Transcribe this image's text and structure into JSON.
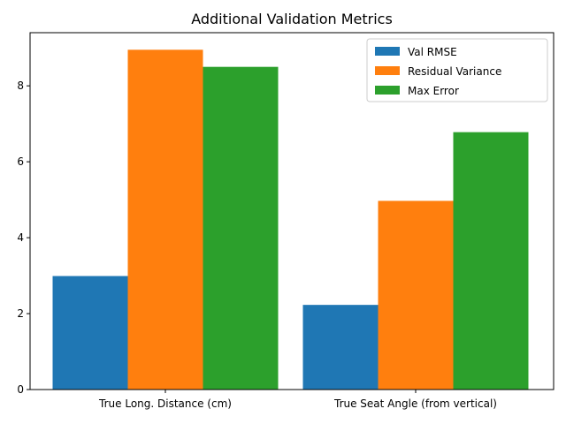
{
  "chart_data": {
    "type": "bar",
    "title": "Additional Validation Metrics",
    "xlabel": "",
    "ylabel": "",
    "categories": [
      "True Long. Distance (cm)",
      "True Seat Angle (from vertical)"
    ],
    "series": [
      {
        "name": "Val RMSE",
        "color": "#1f77b4",
        "values": [
          2.99,
          2.23
        ]
      },
      {
        "name": "Residual Variance",
        "color": "#ff7f0e",
        "values": [
          8.95,
          4.97
        ]
      },
      {
        "name": "Max Error",
        "color": "#2ca02c",
        "values": [
          8.5,
          6.78
        ]
      }
    ],
    "ylim": [
      0,
      9.4
    ],
    "yticks": [
      "0",
      "2",
      "4",
      "6",
      "8"
    ],
    "grid": false,
    "legend_position": "top-right"
  }
}
